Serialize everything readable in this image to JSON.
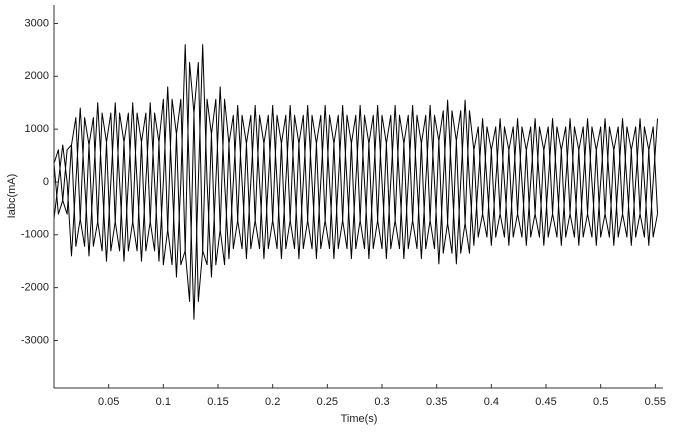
{
  "chart_data": {
    "type": "line",
    "xlabel": "Time(s)",
    "ylabel": "Iabc(mA)",
    "xlim": [
      0,
      0.557
    ],
    "xticks": [
      0.05,
      0.1,
      0.15,
      0.2,
      0.25,
      0.3,
      0.35,
      0.4,
      0.45,
      0.5,
      0.55
    ],
    "ylim": [
      -3900,
      3350
    ],
    "yticks": [
      -3000,
      -2000,
      -1000,
      0,
      1000,
      2000,
      3000
    ],
    "x": [
      0,
      0.004,
      0.008,
      0.012,
      0.016,
      0.02,
      0.024,
      0.028,
      0.032,
      0.036,
      0.04,
      0.044,
      0.048,
      0.052,
      0.056,
      0.06,
      0.064,
      0.068,
      0.072,
      0.076,
      0.08,
      0.084,
      0.088,
      0.092,
      0.096,
      0.1,
      0.104,
      0.108,
      0.112,
      0.116,
      0.12,
      0.124,
      0.128,
      0.132,
      0.136,
      0.14,
      0.144,
      0.148,
      0.152,
      0.156,
      0.16,
      0.164,
      0.168,
      0.172,
      0.176,
      0.18,
      0.184,
      0.188,
      0.192,
      0.196,
      0.2,
      0.204,
      0.208,
      0.212,
      0.216,
      0.22,
      0.224,
      0.228,
      0.232,
      0.236,
      0.24,
      0.244,
      0.248,
      0.252,
      0.256,
      0.26,
      0.264,
      0.268,
      0.272,
      0.276,
      0.28,
      0.284,
      0.288,
      0.292,
      0.296,
      0.3,
      0.304,
      0.308,
      0.312,
      0.316,
      0.32,
      0.324,
      0.328,
      0.332,
      0.336,
      0.34,
      0.344,
      0.348,
      0.352,
      0.356,
      0.36,
      0.364,
      0.368,
      0.372,
      0.376,
      0.38,
      0.384,
      0.388,
      0.392,
      0.396,
      0.4,
      0.404,
      0.408,
      0.412,
      0.416,
      0.42,
      0.424,
      0.428,
      0.432,
      0.436,
      0.44,
      0.444,
      0.448,
      0.452,
      0.456,
      0.46,
      0.464,
      0.468,
      0.472,
      0.476,
      0.48,
      0.484,
      0.488,
      0.492,
      0.496,
      0.5,
      0.504,
      0.508,
      0.512,
      0.516,
      0.52,
      0.524,
      0.528,
      0.532,
      0.536,
      0.54,
      0.544,
      0.548,
      0.552
    ],
    "series": [
      {
        "color": "#000000",
        "values": [
          350,
          609,
          -350,
          -609,
          700,
          1218,
          -700,
          -1218,
          700,
          1218,
          -750,
          -1305,
          750,
          1305,
          -750,
          -1305,
          750,
          1305,
          -750,
          -1305,
          750,
          1305,
          -750,
          -1305,
          750,
          1566,
          -900,
          -1566,
          900,
          1566,
          -1300,
          -2262,
          1300,
          2262,
          -1300,
          -1566,
          900,
          1566,
          -900,
          -1566,
          725,
          1262,
          -725,
          -1262,
          725,
          1262,
          -725,
          -1262,
          725,
          1262,
          -725,
          -1262,
          725,
          1262,
          -725,
          -1262,
          725,
          1262,
          -725,
          -1262,
          725,
          1262,
          -725,
          -1262,
          725,
          1262,
          -725,
          -1262,
          725,
          1262,
          -725,
          -1262,
          725,
          1262,
          -725,
          -1262,
          725,
          1262,
          -725,
          -1262,
          725,
          1262,
          -725,
          -1262,
          725,
          1262,
          -725,
          -1262,
          775,
          1349,
          -775,
          -1349,
          775,
          1349,
          -775,
          -1349,
          600,
          1044,
          -600,
          -1044,
          600,
          1044,
          -600,
          -1044,
          600,
          1044,
          -600,
          -1044,
          600,
          1044,
          -600,
          -1044,
          600,
          1044,
          -600,
          -1044,
          600,
          1044,
          -600,
          -1044,
          600,
          1044,
          -600,
          -1044,
          600,
          1044,
          -600,
          -1044,
          600,
          1044,
          -600,
          -1044,
          600,
          1044,
          -600,
          -1044,
          600,
          1044,
          -600
        ]
      },
      {
        "color": "#000000",
        "values": [
          350,
          -609,
          -350,
          609,
          700,
          -1218,
          -700,
          1218,
          700,
          -1218,
          -750,
          1305,
          750,
          -1305,
          -750,
          1305,
          750,
          -1305,
          -750,
          1305,
          750,
          -1305,
          -750,
          1305,
          750,
          -1566,
          -900,
          1566,
          900,
          -1566,
          -1300,
          2262,
          1300,
          -2262,
          -1300,
          1566,
          900,
          -1566,
          -900,
          1566,
          725,
          -1262,
          -725,
          1262,
          725,
          -1262,
          -725,
          1262,
          725,
          -1262,
          -725,
          1262,
          725,
          -1262,
          -725,
          1262,
          725,
          -1262,
          -725,
          1262,
          725,
          -1262,
          -725,
          1262,
          725,
          -1262,
          -725,
          1262,
          725,
          -1262,
          -725,
          1262,
          725,
          -1262,
          -725,
          1262,
          725,
          -1262,
          -725,
          1262,
          725,
          -1262,
          -725,
          1262,
          725,
          -1262,
          -725,
          1262,
          775,
          -1349,
          -775,
          1349,
          775,
          -1349,
          -775,
          1349,
          600,
          -1044,
          -600,
          1044,
          600,
          -1044,
          -600,
          1044,
          600,
          -1044,
          -600,
          1044,
          600,
          -1044,
          -600,
          1044,
          600,
          -1044,
          -600,
          1044,
          600,
          -1044,
          -600,
          1044,
          600,
          -1044,
          -600,
          1044,
          600,
          -1044,
          -600,
          1044,
          600,
          -1044,
          -600,
          1044,
          600,
          -1044,
          -600,
          1044,
          600,
          -1044,
          -600
        ]
      },
      {
        "color": "#000000",
        "values": [
          -700,
          0,
          700,
          0,
          -1400,
          0,
          1400,
          0,
          -1400,
          0,
          1500,
          0,
          -1500,
          0,
          1500,
          0,
          -1500,
          0,
          1500,
          0,
          -1500,
          0,
          1500,
          0,
          -1500,
          0,
          1800,
          0,
          -1800,
          0,
          2600,
          0,
          -2600,
          0,
          2600,
          0,
          -1800,
          0,
          1800,
          0,
          -1450,
          0,
          1450,
          0,
          -1450,
          0,
          1450,
          0,
          -1450,
          0,
          1450,
          0,
          -1450,
          0,
          1450,
          0,
          -1450,
          0,
          1450,
          0,
          -1450,
          0,
          1450,
          0,
          -1450,
          0,
          1450,
          0,
          -1450,
          0,
          1450,
          0,
          -1450,
          0,
          1450,
          0,
          -1450,
          0,
          1450,
          0,
          -1450,
          0,
          1450,
          0,
          -1450,
          0,
          1450,
          0,
          -1550,
          0,
          1550,
          0,
          -1550,
          0,
          1550,
          0,
          -1200,
          0,
          1200,
          0,
          -1200,
          0,
          1200,
          0,
          -1200,
          0,
          1200,
          0,
          -1200,
          0,
          1200,
          0,
          -1200,
          0,
          1200,
          0,
          -1200,
          0,
          1200,
          0,
          -1200,
          0,
          1200,
          0,
          -1200,
          0,
          1200,
          0,
          -1200,
          0,
          1200,
          0,
          -1200,
          0,
          1200,
          0,
          -1200,
          0,
          1200
        ]
      }
    ]
  }
}
